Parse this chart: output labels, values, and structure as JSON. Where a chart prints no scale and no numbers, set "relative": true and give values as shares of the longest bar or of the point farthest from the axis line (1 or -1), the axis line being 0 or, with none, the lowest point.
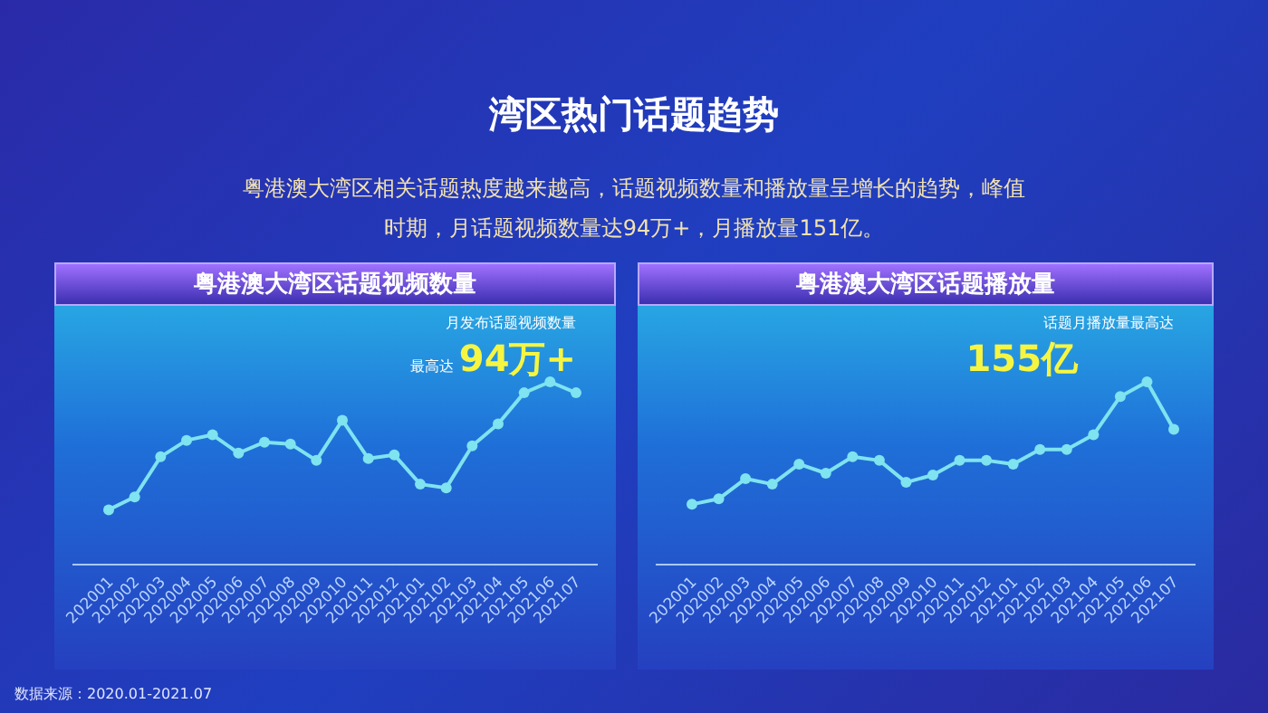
{
  "chart_data": [
    {
      "type": "other",
      "title": "湾区热门话题趋势",
      "subtitle": "粤港澳大湾区相关话题热度越来越高，话题视频数量和播放量呈增长的趋势，峰值时期，月话题视频数量达94万+，月播放量151亿。",
      "annotations": [
        "数据来源：2020.01-2021.07"
      ]
    },
    {
      "type": "line",
      "title": "粤港澳大湾区话题视频数量",
      "relative": true,
      "marker": "circle",
      "categories": [
        "202001",
        "202002",
        "202003",
        "202004",
        "202005",
        "202006",
        "202007",
        "202008",
        "202009",
        "202010",
        "202011",
        "202012",
        "202101",
        "202102",
        "202103",
        "202104",
        "202105",
        "202106",
        "202107"
      ],
      "series": [
        {
          "color": "#7fe3f0",
          "values": [
            0.3,
            0.37,
            0.59,
            0.68,
            0.71,
            0.61,
            0.67,
            0.66,
            0.57,
            0.79,
            0.58,
            0.6,
            0.44,
            0.42,
            0.65,
            0.77,
            0.94,
            1,
            0.94
          ]
        }
      ],
      "annotations": [
        "月发布话题视频数量",
        "最高达",
        "94万+"
      ]
    },
    {
      "type": "line",
      "title": "粤港澳大湾区话题播放量",
      "relative": true,
      "marker": "circle",
      "categories": [
        "202001",
        "202002",
        "202003",
        "202004",
        "202005",
        "202006",
        "202007",
        "202008",
        "202009",
        "202010",
        "202011",
        "202012",
        "202101",
        "202102",
        "202103",
        "202104",
        "202105",
        "202106",
        "202107"
      ],
      "series": [
        {
          "color": "#7fe3f0",
          "values": [
            0.33,
            0.36,
            0.47,
            0.44,
            0.55,
            0.5,
            0.59,
            0.57,
            0.45,
            0.49,
            0.57,
            0.57,
            0.55,
            0.63,
            0.63,
            0.71,
            0.92,
            1,
            0.74
          ]
        }
      ],
      "annotations": [
        "话题月播放量最高达",
        "155亿"
      ]
    }
  ]
}
